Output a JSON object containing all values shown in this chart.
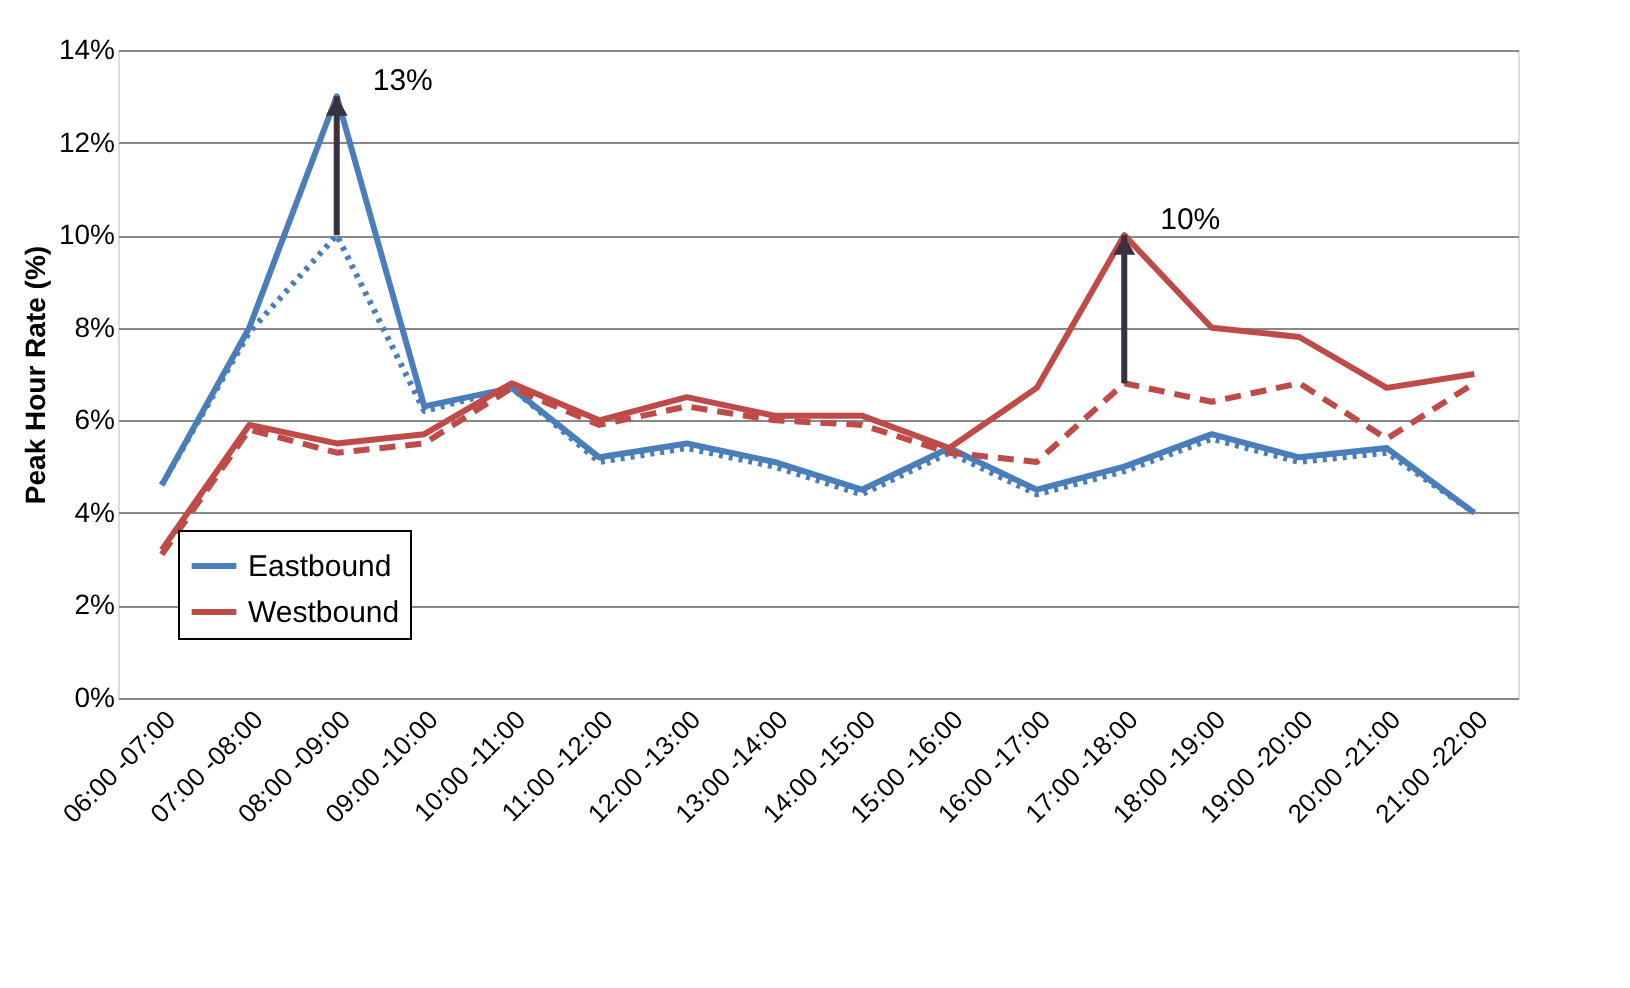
{
  "chart_data": {
    "type": "line",
    "ylabel": "Peak Hour Rate (%)",
    "categories": [
      "06:00 -07:00",
      "07:00 -08:00",
      "08:00 -09:00",
      "09:00 -10:00",
      "10:00 -11:00",
      "11:00 -12:00",
      "12:00 -13:00",
      "13:00 -14:00",
      "14:00 -15:00",
      "15:00 -16:00",
      "16:00 -17:00",
      "17:00 -18:00",
      "18:00 -19:00",
      "19:00 -20:00",
      "20:00 -21:00",
      "21:00 -22:00"
    ],
    "series": [
      {
        "name": "Eastbound",
        "color": "#4a7ebb",
        "line_style": "solid",
        "values": [
          4.6,
          8.0,
          13.0,
          6.3,
          6.7,
          5.2,
          5.5,
          5.1,
          4.5,
          5.4,
          4.5,
          5.0,
          5.7,
          5.2,
          5.4,
          4.0
        ]
      },
      {
        "color": "#4a7ebb",
        "line_style": "dotted",
        "values": [
          4.6,
          7.9,
          10.0,
          6.2,
          6.7,
          5.1,
          5.4,
          5.0,
          4.4,
          5.3,
          4.4,
          4.9,
          5.6,
          5.1,
          5.3,
          4.0
        ]
      },
      {
        "name": "Westbound",
        "color": "#be4b48",
        "line_style": "solid",
        "values": [
          3.2,
          5.9,
          5.5,
          5.7,
          6.8,
          6.0,
          6.5,
          6.1,
          6.1,
          5.4,
          6.7,
          10.0,
          8.0,
          7.8,
          6.7,
          7.0
        ]
      },
      {
        "color": "#be4b48",
        "line_style": "dashed",
        "values": [
          3.1,
          5.8,
          5.3,
          5.5,
          6.7,
          5.9,
          6.3,
          6.0,
          5.9,
          5.3,
          5.1,
          6.8,
          6.4,
          6.8,
          5.6,
          6.8
        ]
      }
    ],
    "ylim": [
      0,
      14
    ],
    "yticks": [
      {
        "value": 0,
        "label": "0%"
      },
      {
        "value": 2,
        "label": "2%"
      },
      {
        "value": 4,
        "label": "4%"
      },
      {
        "value": 6,
        "label": "6%"
      },
      {
        "value": 8,
        "label": "8%"
      },
      {
        "value": 10,
        "label": "10%"
      },
      {
        "value": 12,
        "label": "12%"
      },
      {
        "value": 14,
        "label": "14%"
      }
    ],
    "grid": "y",
    "legend": "bottom left",
    "marker": "none",
    "annotations": [
      {
        "text": "13%",
        "x": "08:00 -09:00",
        "y": 13
      },
      {
        "text": "10%",
        "x": "17:00 -18:00",
        "y": 10
      }
    ]
  }
}
